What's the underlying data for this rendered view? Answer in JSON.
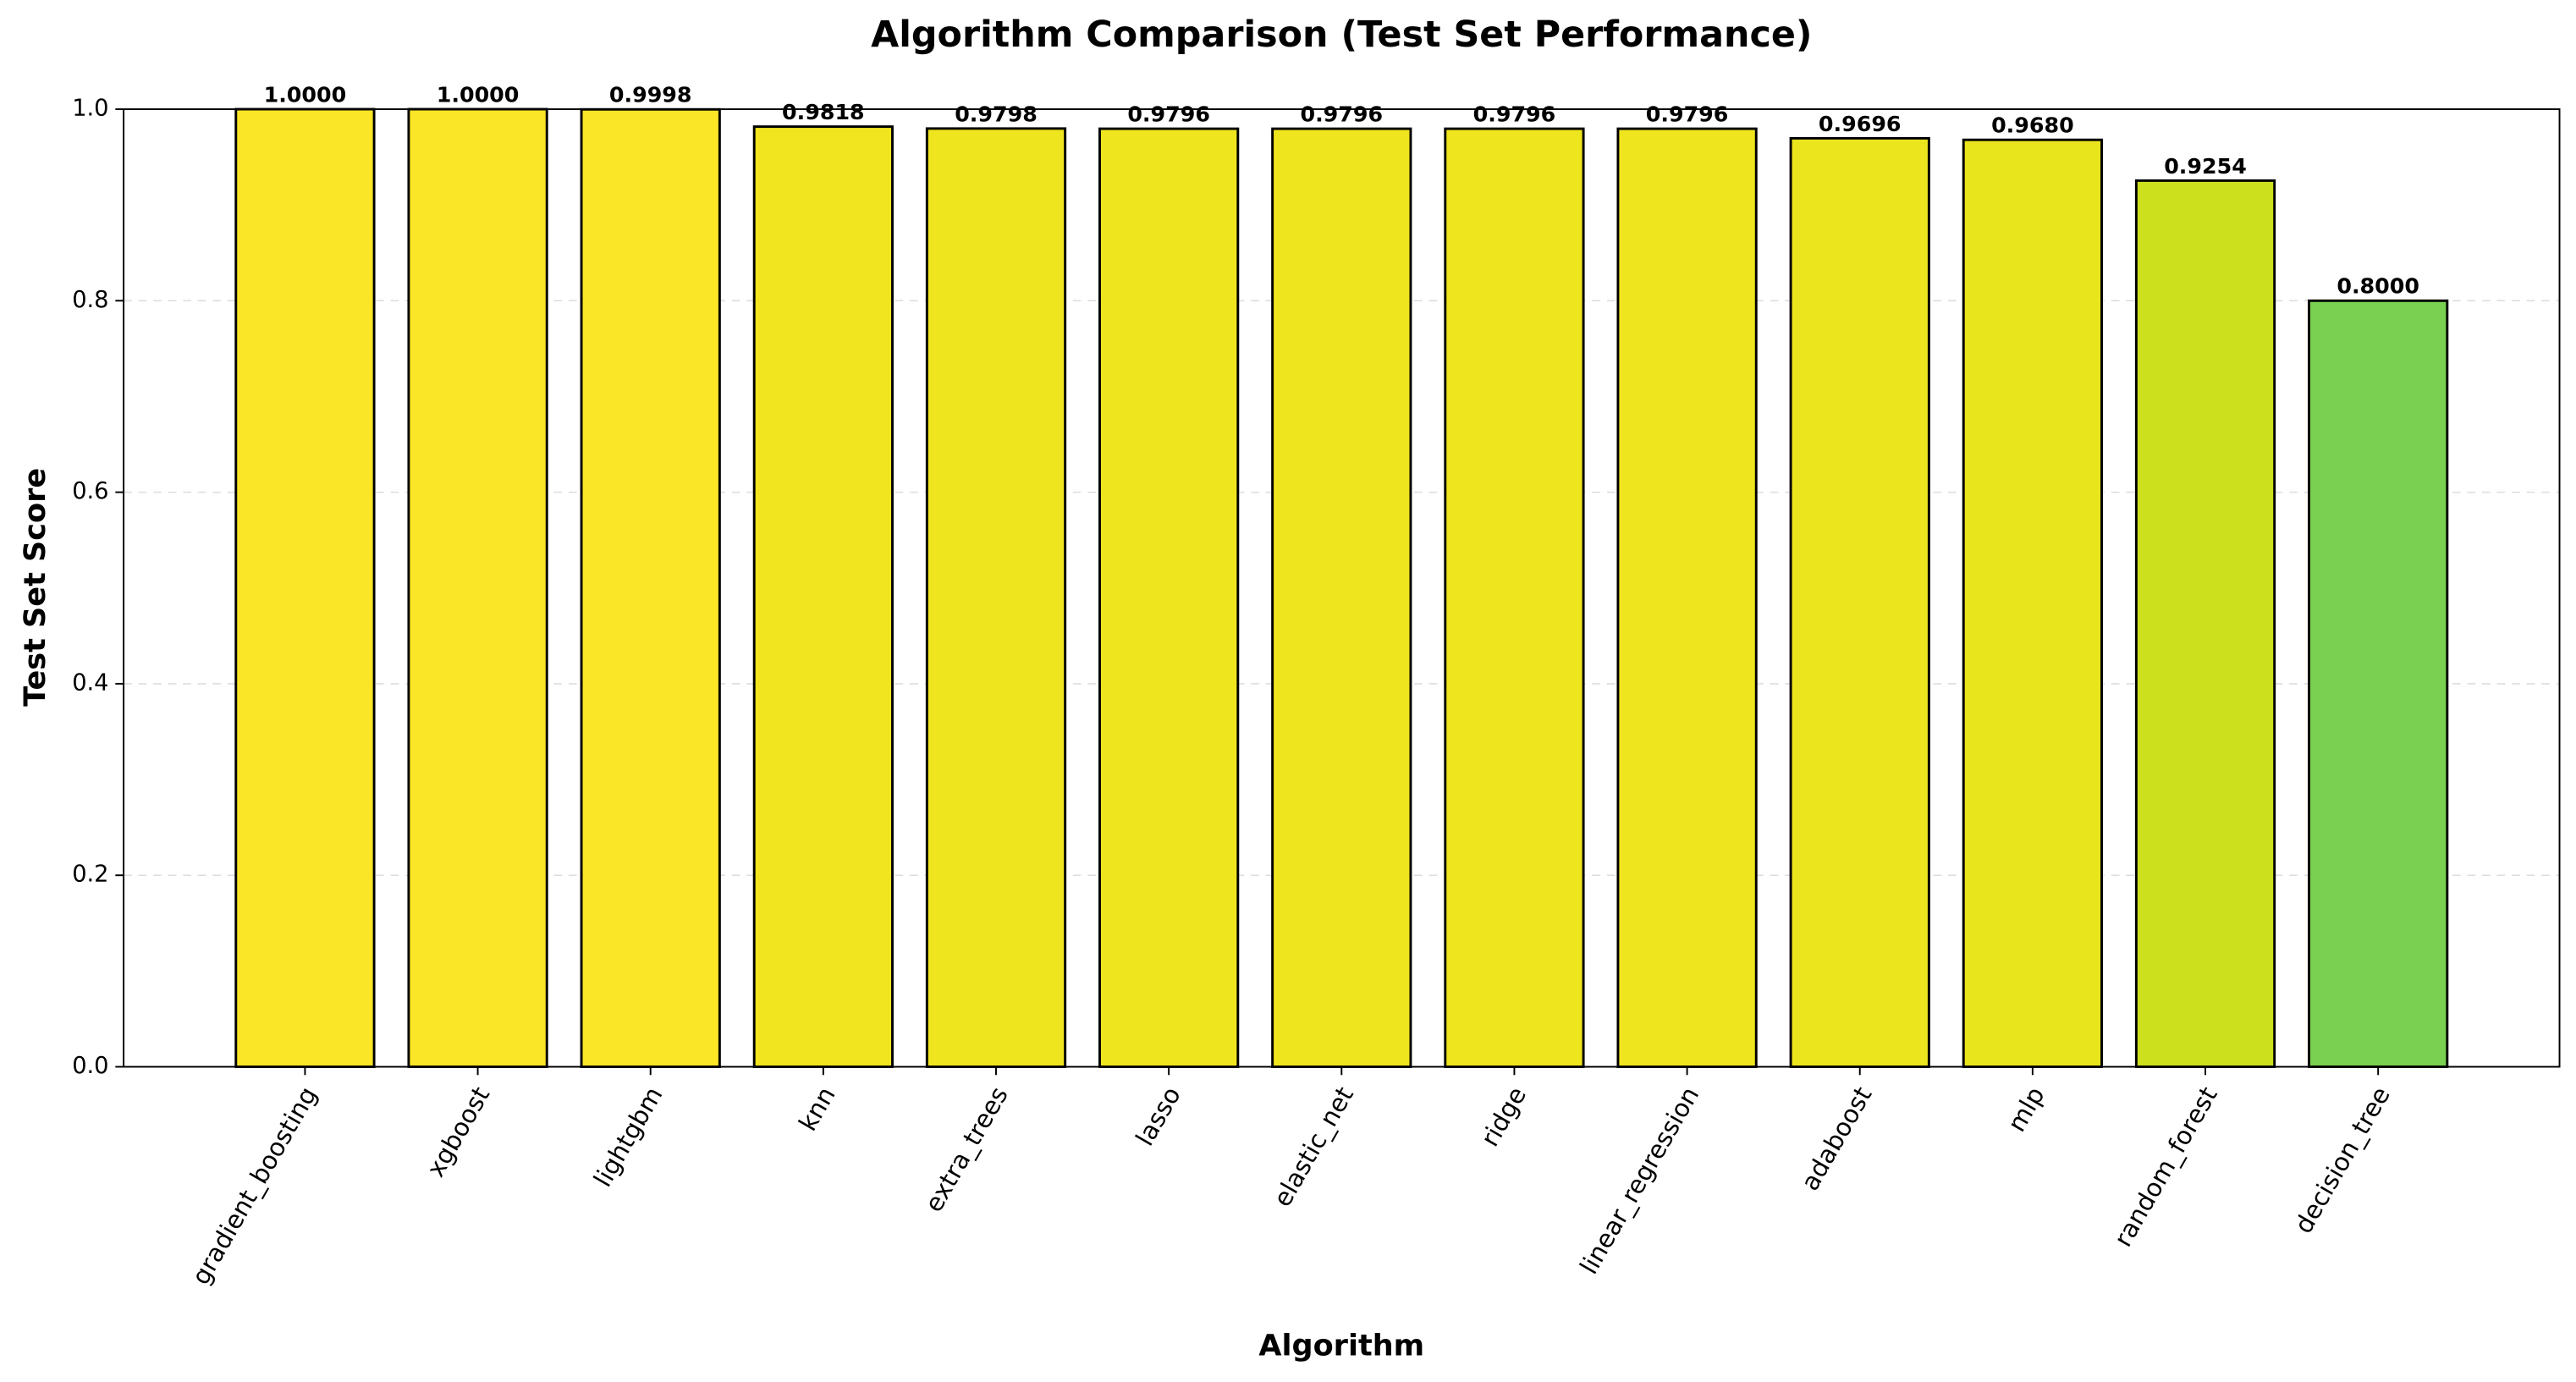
{
  "chart_data": {
    "type": "bar",
    "title": "Algorithm Comparison (Test Set Performance)",
    "x_label": "Algorithm",
    "y_label": "Test Set Score",
    "categories": [
      "gradient_boosting",
      "xgboost",
      "lightgbm",
      "knn",
      "extra_trees",
      "lasso",
      "elastic_net",
      "ridge",
      "linear_regression",
      "adaboost",
      "mlp",
      "random_forest",
      "decision_tree"
    ],
    "values": [
      1.0,
      1.0,
      0.9998,
      0.9818,
      0.9798,
      0.9796,
      0.9796,
      0.9796,
      0.9796,
      0.9696,
      0.968,
      0.9254,
      0.8
    ],
    "value_labels": [
      "1.0000",
      "1.0000",
      "0.9998",
      "0.9818",
      "0.9798",
      "0.9796",
      "0.9796",
      "0.9796",
      "0.9796",
      "0.9696",
      "0.9680",
      "0.9254",
      "0.8000"
    ],
    "colors": [
      "#fbe527",
      "#fbe527",
      "#fbe527",
      "#f0e51e",
      "#efe51e",
      "#efe51e",
      "#efe51e",
      "#efe51e",
      "#efe51e",
      "#ebe51e",
      "#e9e51d",
      "#cde01e",
      "#7ad151"
    ],
    "ylim": [
      0,
      1
    ],
    "yticks": [
      {
        "value": 0,
        "label": "0.0"
      },
      0.2,
      0.4,
      0.6,
      0.8,
      {
        "value": 1,
        "label": "1.0"
      }
    ],
    "grid": true
  }
}
